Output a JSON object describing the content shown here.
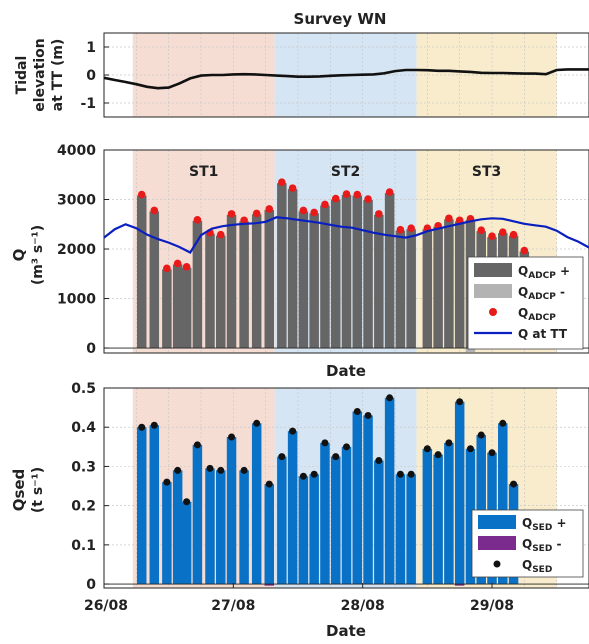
{
  "figure": {
    "title": "Survey WN"
  },
  "colors": {
    "st1": "#f6ddd4",
    "st2": "#d6e5f3",
    "st3": "#f8eccd",
    "st1_text": "#c8623a",
    "st2_text": "#2a7fc0",
    "st3_text": "#e6b52a",
    "q_plus": "#666666",
    "q_minus": "#b3b3b3",
    "q_dot": "#e81a1a",
    "q_line": "#0a1fc0",
    "sed_plus": "#0a72c6",
    "sed_minus": "#7b2a8e",
    "sed_dot": "#111111"
  },
  "chart_data": [
    {
      "id": "tidal",
      "type": "line",
      "title": "Survey WN",
      "ylabel_lines": [
        "Tidal",
        "elevation",
        "at TT (m)"
      ],
      "xlim": [
        0,
        13.5
      ],
      "ylim": [
        -1.5,
        1.5
      ],
      "yticks": [
        "-1",
        "0",
        "1"
      ],
      "grid": true,
      "stations": [
        {
          "name": "ST1",
          "x0": 0.8,
          "x1": 4.75
        },
        {
          "name": "ST2",
          "x0": 4.75,
          "x1": 8.7
        },
        {
          "name": "ST3",
          "x0": 8.7,
          "x1": 12.6
        }
      ],
      "series": [
        {
          "x": [
            0,
            0.3,
            0.6,
            0.9,
            1.2,
            1.5,
            1.8,
            2.1,
            2.4,
            2.7,
            3.0,
            3.3,
            3.6,
            3.9,
            4.2,
            4.5,
            4.8,
            5.1,
            5.4,
            5.7,
            6.0,
            6.3,
            6.6,
            6.9,
            7.2,
            7.5,
            7.8,
            8.1,
            8.4,
            8.7,
            9.0,
            9.3,
            9.6,
            9.9,
            10.2,
            10.5,
            10.8,
            11.1,
            11.4,
            11.7,
            12.0,
            12.3,
            12.6,
            12.9,
            13.2,
            13.5
          ],
          "y": [
            -0.1,
            -0.18,
            -0.25,
            -0.33,
            -0.42,
            -0.47,
            -0.45,
            -0.3,
            -0.12,
            -0.02,
            0.0,
            0.0,
            0.02,
            0.03,
            0.02,
            0.0,
            -0.02,
            -0.04,
            -0.06,
            -0.06,
            -0.05,
            -0.03,
            -0.01,
            0.0,
            0.01,
            0.02,
            0.06,
            0.14,
            0.18,
            0.18,
            0.17,
            0.15,
            0.15,
            0.13,
            0.11,
            0.08,
            0.07,
            0.07,
            0.06,
            0.05,
            0.05,
            0.03,
            0.18,
            0.2,
            0.2,
            0.2
          ]
        }
      ]
    },
    {
      "id": "discharge",
      "type": "bar",
      "ylabel": "Q",
      "yunit": "(m³ s⁻¹)",
      "xlabel": "Date",
      "xlim": [
        0,
        13.5
      ],
      "ylim": [
        -100,
        4000
      ],
      "yticks": [
        "0",
        "1000",
        "2000",
        "3000",
        "4000"
      ],
      "grid": true,
      "stations": [
        {
          "name": "ST1",
          "x0": 0.8,
          "x1": 4.75
        },
        {
          "name": "ST2",
          "x0": 4.75,
          "x1": 8.7
        },
        {
          "name": "ST3",
          "x0": 8.7,
          "x1": 12.6
        }
      ],
      "bar_x": [
        1.05,
        1.4,
        1.75,
        2.05,
        2.3,
        2.6,
        2.95,
        3.25,
        3.55,
        3.9,
        4.25,
        4.6,
        4.95,
        5.25,
        5.55,
        5.85,
        6.15,
        6.45,
        6.75,
        7.05,
        7.35,
        7.65,
        7.95,
        8.25,
        8.55,
        9.0,
        9.3,
        9.6,
        9.9,
        10.2,
        10.5,
        10.8,
        11.1,
        11.4,
        11.7,
        12.0,
        12.3
      ],
      "series": [
        {
          "name": "Q_ADCP +",
          "values": [
            3080,
            2760,
            1590,
            1690,
            1620,
            2570,
            2310,
            2270,
            2690,
            2560,
            2700,
            2790,
            3330,
            3210,
            2760,
            2720,
            2880,
            3000,
            3090,
            3080,
            2990,
            2690,
            3130,
            2370,
            2400,
            2400,
            2450,
            2600,
            2560,
            2590,
            2360,
            2240,
            2320,
            2270,
            1950,
            0,
            0
          ]
        },
        {
          "name": "Q_ADCP -",
          "values": [
            0,
            0,
            0,
            0,
            0,
            0,
            0,
            0,
            0,
            0,
            0,
            0,
            0,
            0,
            0,
            0,
            0,
            0,
            0,
            0,
            0,
            0,
            0,
            0,
            0,
            0,
            0,
            0,
            0,
            -80,
            0,
            0,
            0,
            0,
            0,
            0,
            0
          ]
        },
        {
          "name": "Q_ADCP",
          "values": [
            3100,
            2780,
            1610,
            1710,
            1640,
            2590,
            2330,
            2290,
            2710,
            2580,
            2720,
            2810,
            3350,
            3230,
            2780,
            2740,
            2900,
            3020,
            3110,
            3100,
            3010,
            2710,
            3150,
            2390,
            2420,
            2420,
            2470,
            2620,
            2580,
            2610,
            2380,
            2260,
            2340,
            2290,
            1970,
            null,
            null
          ]
        }
      ],
      "line": {
        "name": "Q at TT",
        "x": [
          0,
          0.3,
          0.6,
          0.9,
          1.2,
          1.5,
          1.8,
          2.1,
          2.4,
          2.7,
          3.0,
          3.3,
          3.6,
          3.9,
          4.2,
          4.5,
          4.8,
          5.1,
          5.4,
          5.7,
          6.0,
          6.3,
          6.6,
          6.9,
          7.2,
          7.5,
          7.8,
          8.1,
          8.4,
          8.7,
          9.0,
          9.3,
          9.6,
          9.9,
          10.2,
          10.5,
          10.8,
          11.1,
          11.4,
          11.7,
          12.0,
          12.3,
          12.6,
          12.9,
          13.2,
          13.5
        ],
        "y": [
          2230,
          2400,
          2500,
          2420,
          2290,
          2200,
          2130,
          2040,
          1930,
          2280,
          2410,
          2460,
          2490,
          2510,
          2520,
          2550,
          2640,
          2620,
          2590,
          2560,
          2530,
          2490,
          2450,
          2430,
          2380,
          2330,
          2290,
          2260,
          2230,
          2280,
          2360,
          2410,
          2460,
          2510,
          2560,
          2600,
          2620,
          2610,
          2560,
          2510,
          2480,
          2450,
          2370,
          2240,
          2150,
          2030
        ]
      },
      "legend": {
        "position": "bottom-right",
        "items": [
          {
            "label_main": "Q",
            "label_sub": "ADCP",
            "label_suffix": " +",
            "kind": "bar_plus"
          },
          {
            "label_main": "Q",
            "label_sub": "ADCP",
            "label_suffix": " -",
            "kind": "bar_minus"
          },
          {
            "label_main": "Q",
            "label_sub": "ADCP",
            "label_suffix": "",
            "kind": "dot"
          },
          {
            "label_main": "Q at TT",
            "label_sub": "",
            "label_suffix": "",
            "kind": "line"
          }
        ]
      }
    },
    {
      "id": "sediment",
      "type": "bar",
      "ylabel": "Qsed",
      "yunit": "(t s⁻¹)",
      "xlabel": "Date",
      "xlim": [
        0,
        13.5
      ],
      "ylim": [
        -0.01,
        0.5
      ],
      "yticks": [
        "0",
        "0.1",
        "0.2",
        "0.3",
        "0.4",
        "0.5"
      ],
      "xticks": [
        {
          "x": 0.0,
          "label": "26/08"
        },
        {
          "x": 3.6,
          "label": "27/08"
        },
        {
          "x": 7.2,
          "label": "28/08"
        },
        {
          "x": 10.8,
          "label": "29/08"
        }
      ],
      "grid": true,
      "stations": [
        {
          "name": "ST1",
          "x0": 0.8,
          "x1": 4.75
        },
        {
          "name": "ST2",
          "x0": 4.75,
          "x1": 8.7
        },
        {
          "name": "ST3",
          "x0": 8.7,
          "x1": 12.6
        }
      ],
      "bar_x": [
        1.05,
        1.4,
        1.75,
        2.05,
        2.3,
        2.6,
        2.95,
        3.25,
        3.55,
        3.9,
        4.25,
        4.6,
        4.95,
        5.25,
        5.55,
        5.85,
        6.15,
        6.45,
        6.75,
        7.05,
        7.35,
        7.65,
        7.95,
        8.25,
        8.55,
        9.0,
        9.3,
        9.6,
        9.9,
        10.2,
        10.5,
        10.8,
        11.1,
        11.4,
        11.7,
        12.0,
        12.3
      ],
      "series": [
        {
          "name": "Q_SED +",
          "values": [
            0.4,
            0.405,
            0.26,
            0.29,
            0.21,
            0.355,
            0.295,
            0.29,
            0.375,
            0.29,
            0.41,
            0.255,
            0.325,
            0.39,
            0.275,
            0.28,
            0.36,
            0.325,
            0.35,
            0.44,
            0.43,
            0.315,
            0.475,
            0.28,
            0.28,
            0.345,
            0.33,
            0.36,
            0.465,
            0.345,
            0.38,
            0.335,
            0.41,
            0.255,
            0,
            0,
            0
          ]
        },
        {
          "name": "Q_SED -",
          "values": [
            0,
            0,
            0,
            0,
            0,
            0,
            0,
            0,
            0,
            0,
            0,
            -0.004,
            0,
            0,
            0,
            0,
            0,
            0,
            0,
            0,
            0,
            0,
            0,
            0,
            0,
            0,
            0,
            0,
            -0.004,
            0,
            0,
            0,
            0,
            0,
            0,
            0,
            0
          ]
        },
        {
          "name": "Q_SED",
          "values": [
            0.4,
            0.405,
            0.26,
            0.29,
            0.21,
            0.355,
            0.295,
            0.29,
            0.375,
            0.29,
            0.41,
            0.255,
            0.325,
            0.39,
            0.275,
            0.28,
            0.36,
            0.325,
            0.35,
            0.44,
            0.43,
            0.315,
            0.475,
            0.28,
            0.28,
            0.345,
            0.33,
            0.36,
            0.465,
            0.345,
            0.38,
            0.335,
            0.41,
            0.255,
            null,
            null,
            null
          ]
        }
      ],
      "legend": {
        "position": "bottom-right",
        "items": [
          {
            "label_main": "Q",
            "label_sub": "SED",
            "label_suffix": " +",
            "kind": "bar_plus"
          },
          {
            "label_main": "Q",
            "label_sub": "SED",
            "label_suffix": " -",
            "kind": "bar_minus"
          },
          {
            "label_main": "Q",
            "label_sub": "SED",
            "label_suffix": "",
            "kind": "dot"
          }
        ]
      }
    }
  ]
}
